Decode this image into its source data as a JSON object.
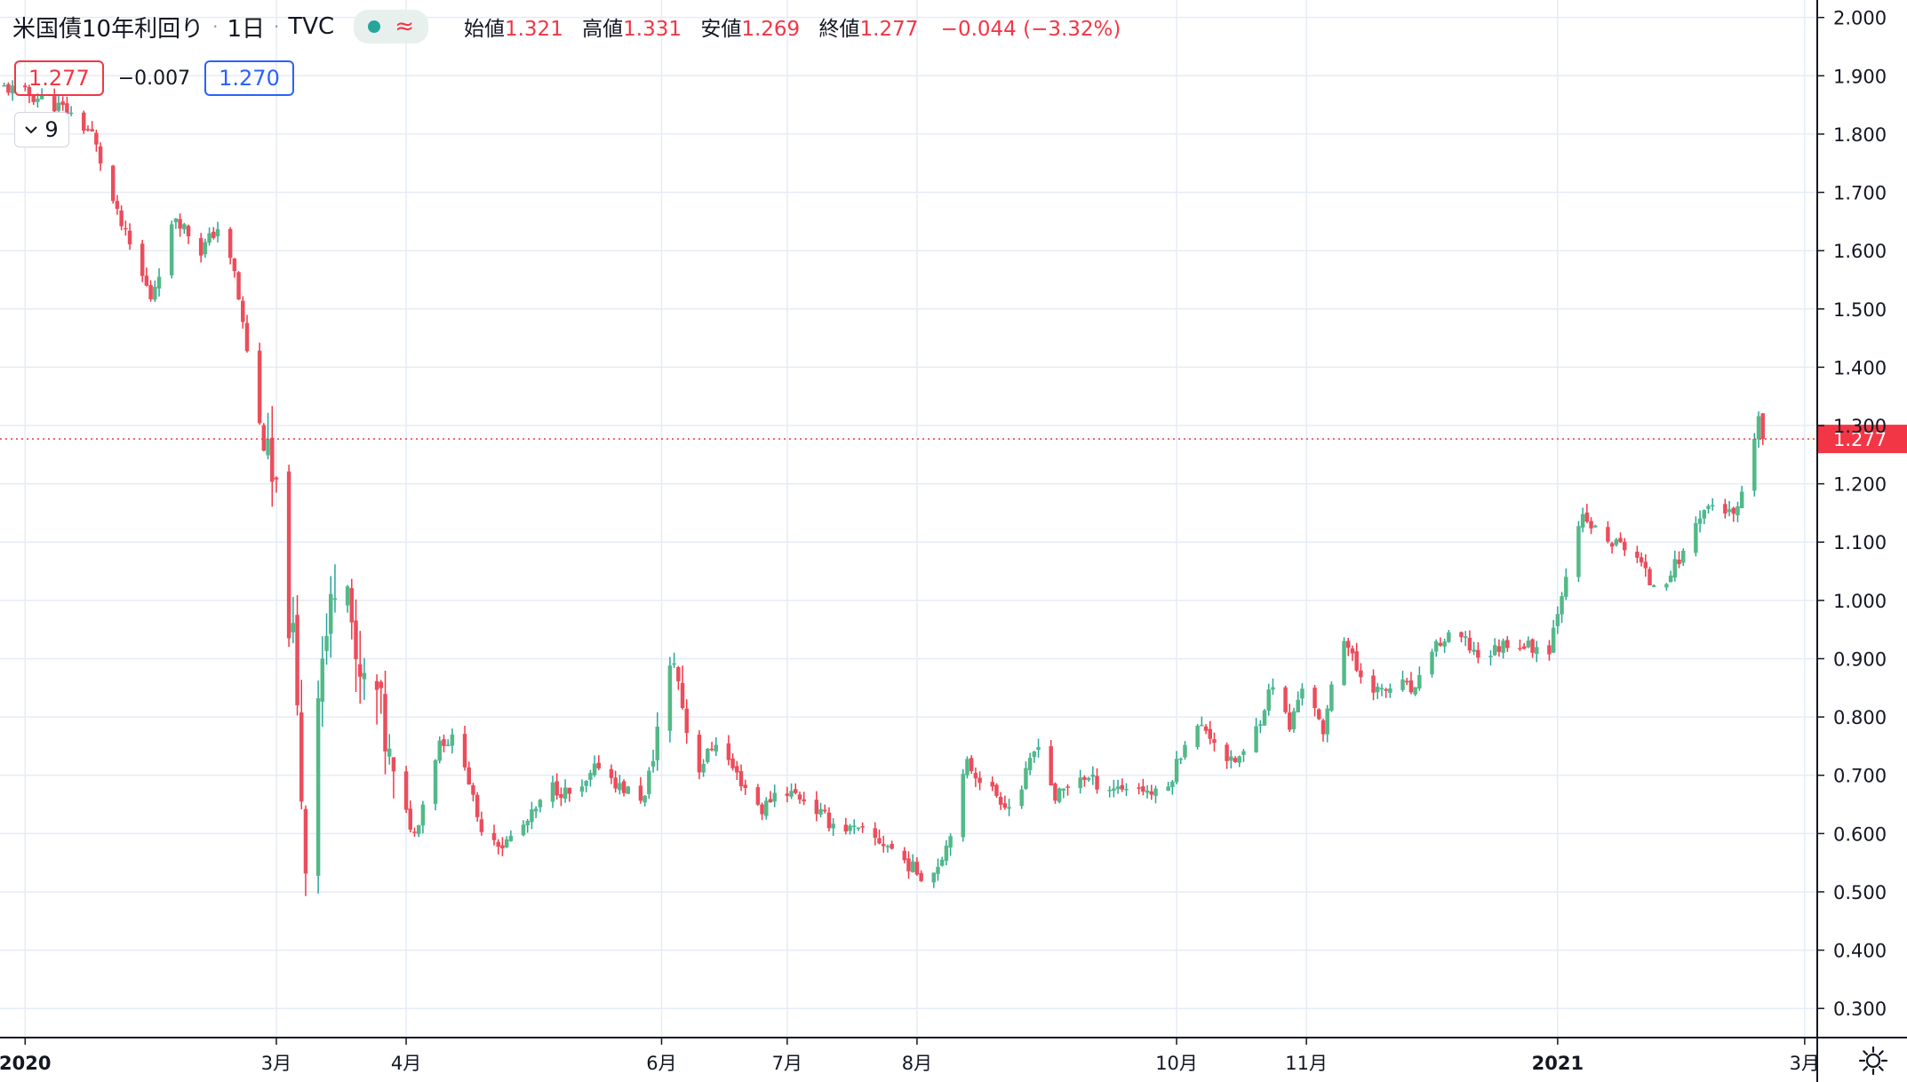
{
  "legend": {
    "title": "米国債10年利回り",
    "interval": "1日",
    "source": "TVC",
    "wave_symbol": "≈",
    "open_label": "始値",
    "open_value": "1.321",
    "high_label": "高値",
    "high_value": "1.331",
    "low_label": "安値",
    "low_value": "1.269",
    "close_label": "終値",
    "close_value": "1.277",
    "change": "−0.044 (−3.32%)",
    "price_box": "1.277",
    "spread_diff": "−0.007",
    "bid_box": "1.270",
    "collapsed_count": "9"
  },
  "colors": {
    "up": "#26a69a",
    "up_body": "#53b987",
    "down": "#f23645",
    "down_body": "#eb4d5c",
    "grid": "#e6ecf5",
    "price_line": "#f23645"
  },
  "icons": [
    "chevron-down-icon",
    "gear-icon",
    "status-dot-icon"
  ],
  "chart_data": {
    "type": "candlestick",
    "title": "米国債10年利回り",
    "y_range": [
      0.25,
      2.03
    ],
    "y_ticks": [
      "2.000",
      "1.900",
      "1.800",
      "1.700",
      "1.600",
      "1.500",
      "1.400",
      "1.300",
      "1.200",
      "1.100",
      "1.000",
      "0.900",
      "0.800",
      "0.700",
      "0.600",
      "0.500",
      "0.400",
      "0.300"
    ],
    "x_labels": [
      {
        "label": "2020",
        "day": 0
      },
      {
        "label": "3月",
        "day": 60
      },
      {
        "label": "4月",
        "day": 91
      },
      {
        "label": "6月",
        "day": 152
      },
      {
        "label": "7月",
        "day": 182
      },
      {
        "label": "8月",
        "day": 213
      },
      {
        "label": "10月",
        "day": 275
      },
      {
        "label": "11月",
        "day": 306
      },
      {
        "label": "2021",
        "day": 366
      },
      {
        "label": "3月",
        "day": 425
      }
    ],
    "x_range_days": [
      -6,
      428
    ],
    "current_price": "1.277",
    "current_price_value": 1.277,
    "grid": true,
    "waypoints": [
      {
        "day": -5,
        "v": 1.88
      },
      {
        "day": 4,
        "v": 1.86
      },
      {
        "day": 10,
        "v": 1.84
      },
      {
        "day": 16,
        "v": 1.8
      },
      {
        "day": 22,
        "v": 1.66
      },
      {
        "day": 30,
        "v": 1.52
      },
      {
        "day": 36,
        "v": 1.66
      },
      {
        "day": 42,
        "v": 1.6
      },
      {
        "day": 46,
        "v": 1.64
      },
      {
        "day": 50,
        "v": 1.56
      },
      {
        "day": 56,
        "v": 1.3
      },
      {
        "day": 60,
        "v": 1.16
      },
      {
        "day": 64,
        "v": 0.92
      },
      {
        "day": 67,
        "v": 0.55
      },
      {
        "day": 70,
        "v": 0.87
      },
      {
        "day": 73,
        "v": 0.98
      },
      {
        "day": 76,
        "v": 1.18
      },
      {
        "day": 79,
        "v": 0.86
      },
      {
        "day": 84,
        "v": 0.84
      },
      {
        "day": 88,
        "v": 0.68
      },
      {
        "day": 93,
        "v": 0.6
      },
      {
        "day": 99,
        "v": 0.76
      },
      {
        "day": 104,
        "v": 0.76
      },
      {
        "day": 108,
        "v": 0.62
      },
      {
        "day": 114,
        "v": 0.58
      },
      {
        "day": 120,
        "v": 0.62
      },
      {
        "day": 126,
        "v": 0.68
      },
      {
        "day": 132,
        "v": 0.66
      },
      {
        "day": 137,
        "v": 0.72
      },
      {
        "day": 142,
        "v": 0.68
      },
      {
        "day": 148,
        "v": 0.66
      },
      {
        "day": 152,
        "v": 0.82
      },
      {
        "day": 155,
        "v": 0.9
      },
      {
        "day": 160,
        "v": 0.7
      },
      {
        "day": 165,
        "v": 0.76
      },
      {
        "day": 170,
        "v": 0.7
      },
      {
        "day": 176,
        "v": 0.64
      },
      {
        "day": 180,
        "v": 0.68
      },
      {
        "day": 186,
        "v": 0.66
      },
      {
        "day": 192,
        "v": 0.62
      },
      {
        "day": 200,
        "v": 0.6
      },
      {
        "day": 206,
        "v": 0.58
      },
      {
        "day": 212,
        "v": 0.54
      },
      {
        "day": 216,
        "v": 0.52
      },
      {
        "day": 220,
        "v": 0.58
      },
      {
        "day": 225,
        "v": 0.72
      },
      {
        "day": 230,
        "v": 0.68
      },
      {
        "day": 236,
        "v": 0.64
      },
      {
        "day": 242,
        "v": 0.76
      },
      {
        "day": 246,
        "v": 0.66
      },
      {
        "day": 252,
        "v": 0.7
      },
      {
        "day": 258,
        "v": 0.68
      },
      {
        "day": 266,
        "v": 0.68
      },
      {
        "day": 272,
        "v": 0.66
      },
      {
        "day": 278,
        "v": 0.78
      },
      {
        "day": 282,
        "v": 0.78
      },
      {
        "day": 288,
        "v": 0.72
      },
      {
        "day": 292,
        "v": 0.74
      },
      {
        "day": 298,
        "v": 0.86
      },
      {
        "day": 302,
        "v": 0.78
      },
      {
        "day": 306,
        "v": 0.88
      },
      {
        "day": 310,
        "v": 0.76
      },
      {
        "day": 314,
        "v": 0.96
      },
      {
        "day": 318,
        "v": 0.88
      },
      {
        "day": 324,
        "v": 0.84
      },
      {
        "day": 328,
        "v": 0.86
      },
      {
        "day": 332,
        "v": 0.84
      },
      {
        "day": 336,
        "v": 0.92
      },
      {
        "day": 342,
        "v": 0.94
      },
      {
        "day": 348,
        "v": 0.9
      },
      {
        "day": 354,
        "v": 0.93
      },
      {
        "day": 360,
        "v": 0.92
      },
      {
        "day": 364,
        "v": 0.92
      },
      {
        "day": 368,
        "v": 1.05
      },
      {
        "day": 372,
        "v": 1.14
      },
      {
        "day": 378,
        "v": 1.1
      },
      {
        "day": 384,
        "v": 1.09
      },
      {
        "day": 388,
        "v": 1.03
      },
      {
        "day": 392,
        "v": 1.04
      },
      {
        "day": 396,
        "v": 1.08
      },
      {
        "day": 400,
        "v": 1.15
      },
      {
        "day": 404,
        "v": 1.17
      },
      {
        "day": 408,
        "v": 1.14
      },
      {
        "day": 412,
        "v": 1.21
      },
      {
        "day": 414,
        "v": 1.32
      },
      {
        "day": 415,
        "v": 1.277
      }
    ]
  }
}
